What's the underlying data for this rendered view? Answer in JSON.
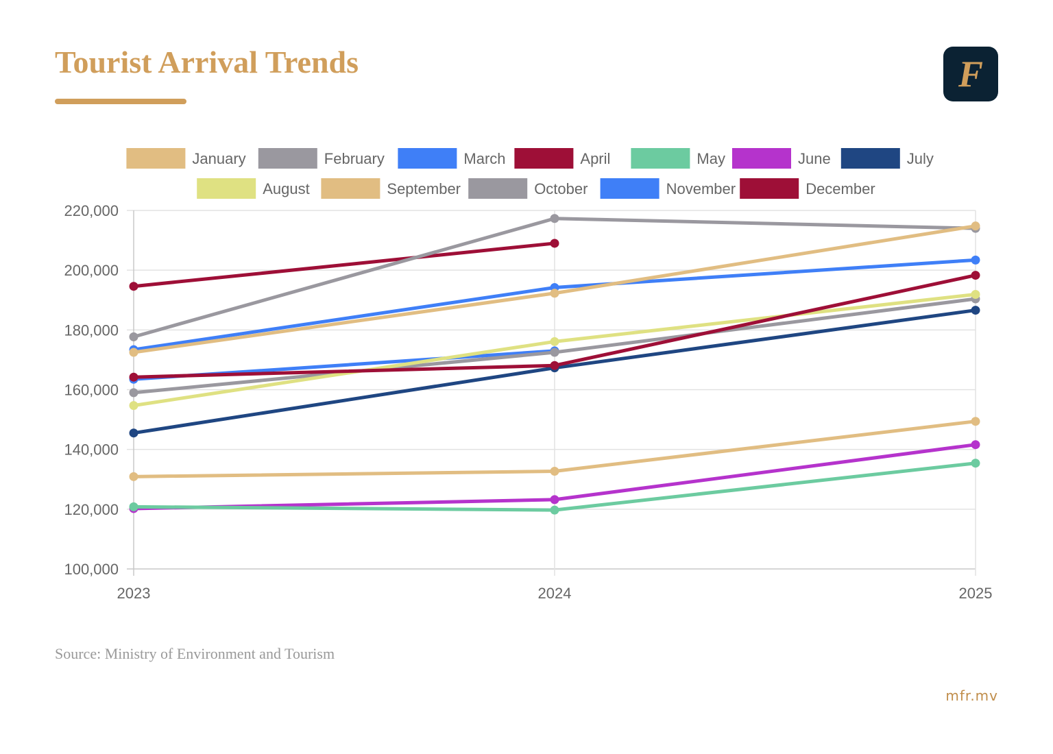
{
  "header": {
    "title": "Tourist Arrival Trends",
    "logo_letter": "F",
    "accent_color": "#d09e5b",
    "logo_bg": "#0b2233"
  },
  "footer": {
    "source": "Source: Ministry of Environment and Tourism",
    "site": "mfr.mv"
  },
  "chart_data": {
    "type": "line",
    "title": "Tourist Arrival Trends",
    "xlabel": "",
    "ylabel": "",
    "x": [
      "2023",
      "2024",
      "2025"
    ],
    "ylim": [
      100000,
      220000
    ],
    "yticks": [
      100000,
      120000,
      140000,
      160000,
      180000,
      200000,
      220000
    ],
    "ytick_labels": [
      "100,000",
      "120,000",
      "140,000",
      "160,000",
      "180,000",
      "200,000",
      "220,000"
    ],
    "grid": true,
    "legend_position": "top",
    "series": [
      {
        "name": "January",
        "color": "#e1bd82",
        "values": [
          172500,
          192300,
          214800
        ]
      },
      {
        "name": "February",
        "color": "#9a989f",
        "values": [
          177700,
          217300,
          214000
        ]
      },
      {
        "name": "March",
        "color": "#3f7ff7",
        "values": [
          173400,
          194200,
          203400
        ]
      },
      {
        "name": "April",
        "color": "#9e0f37",
        "values": [
          164200,
          168100,
          198300
        ]
      },
      {
        "name": "May",
        "color": "#6ccba0",
        "values": [
          120800,
          119700,
          135400
        ]
      },
      {
        "name": "June",
        "color": "#b533cc",
        "values": [
          120200,
          123200,
          141600
        ]
      },
      {
        "name": "July",
        "color": "#1f4682",
        "values": [
          145500,
          167300,
          186600
        ]
      },
      {
        "name": "August",
        "color": "#dfe182",
        "values": [
          154700,
          176100,
          191900
        ]
      },
      {
        "name": "September",
        "color": "#e1bd82",
        "values": [
          130900,
          132700,
          149400
        ]
      },
      {
        "name": "October",
        "color": "#9a989f",
        "values": [
          159000,
          172500,
          190400
        ]
      },
      {
        "name": "November",
        "color": "#3f7ff7",
        "values": [
          163500,
          173000,
          null
        ]
      },
      {
        "name": "December",
        "color": "#9e0f37",
        "values": [
          194600,
          209000,
          null
        ]
      }
    ]
  }
}
